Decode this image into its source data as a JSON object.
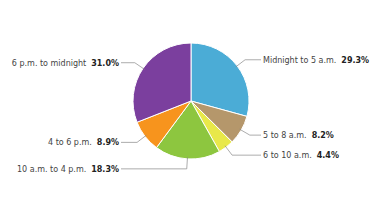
{
  "chart_data": {
    "type": "pie",
    "categories": [
      "Midnight to 5 a.m.",
      "5 to 8 a.m.",
      "6 to 10 a.m.",
      "10 a.m. to 4 p.m.",
      "4 to 6 p.m.",
      "6 p.m. to midnight"
    ],
    "values": [
      29.3,
      8.2,
      4.4,
      18.3,
      8.9,
      31.0
    ],
    "value_labels": [
      "29.3%",
      "8.2%",
      "4.4%",
      "18.3%",
      "8.9%",
      "31.0%"
    ],
    "colors": [
      "#4bacd6",
      "#b5976b",
      "#e8e84a",
      "#8dc63f",
      "#f7941d",
      "#7b3f9e"
    ],
    "data_labels": true
  }
}
